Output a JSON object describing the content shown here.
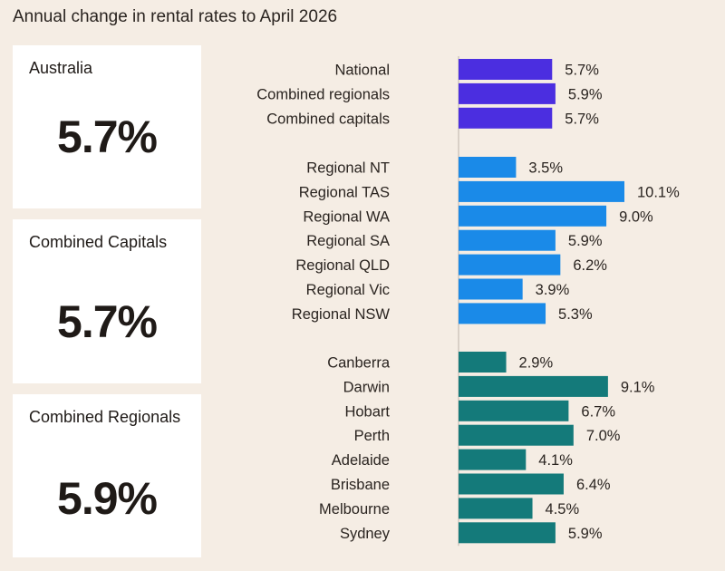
{
  "title": "Annual change in rental rates to April 2026",
  "cards": [
    {
      "label": "Australia",
      "value": "5.7%"
    },
    {
      "label": "Combined Capitals",
      "value": "5.7%"
    },
    {
      "label": "Combined Regionals",
      "value": "5.9%"
    }
  ],
  "colors": {
    "summary": "#4b2ee0",
    "regional": "#1a8ae8",
    "capital": "#147a7a",
    "background": "#f5ede4",
    "axis": "#bdb4aa"
  },
  "chart_data": {
    "type": "bar",
    "orientation": "horizontal",
    "groups": [
      {
        "categories": [
          "National",
          "Combined regionals",
          "Combined capitals"
        ],
        "values": [
          5.7,
          5.9,
          5.7
        ],
        "labels": [
          "5.7%",
          "5.9%",
          "5.7%"
        ],
        "color": "#4b2ee0"
      },
      {
        "categories": [
          "Regional NT",
          "Regional TAS",
          "Regional WA",
          "Regional SA",
          "Regional QLD",
          "Regional Vic",
          "Regional NSW"
        ],
        "values": [
          3.5,
          10.1,
          9.0,
          5.9,
          6.2,
          3.9,
          5.3
        ],
        "labels": [
          "3.5%",
          "10.1%",
          "9.0%",
          "5.9%",
          "6.2%",
          "3.9%",
          "5.3%"
        ],
        "color": "#1a8ae8"
      },
      {
        "categories": [
          "Canberra",
          "Darwin",
          "Hobart",
          "Perth",
          "Adelaide",
          "Brisbane",
          "Melbourne",
          "Sydney"
        ],
        "values": [
          2.9,
          9.1,
          6.7,
          7.0,
          4.1,
          6.4,
          4.5,
          5.9
        ],
        "labels": [
          "2.9%",
          "9.1%",
          "6.7%",
          "7.0%",
          "4.1%",
          "6.4%",
          "4.5%",
          "5.9%"
        ],
        "color": "#147a7a"
      }
    ],
    "xlim": [
      0,
      10.1
    ],
    "grid": false,
    "legend": "none"
  }
}
